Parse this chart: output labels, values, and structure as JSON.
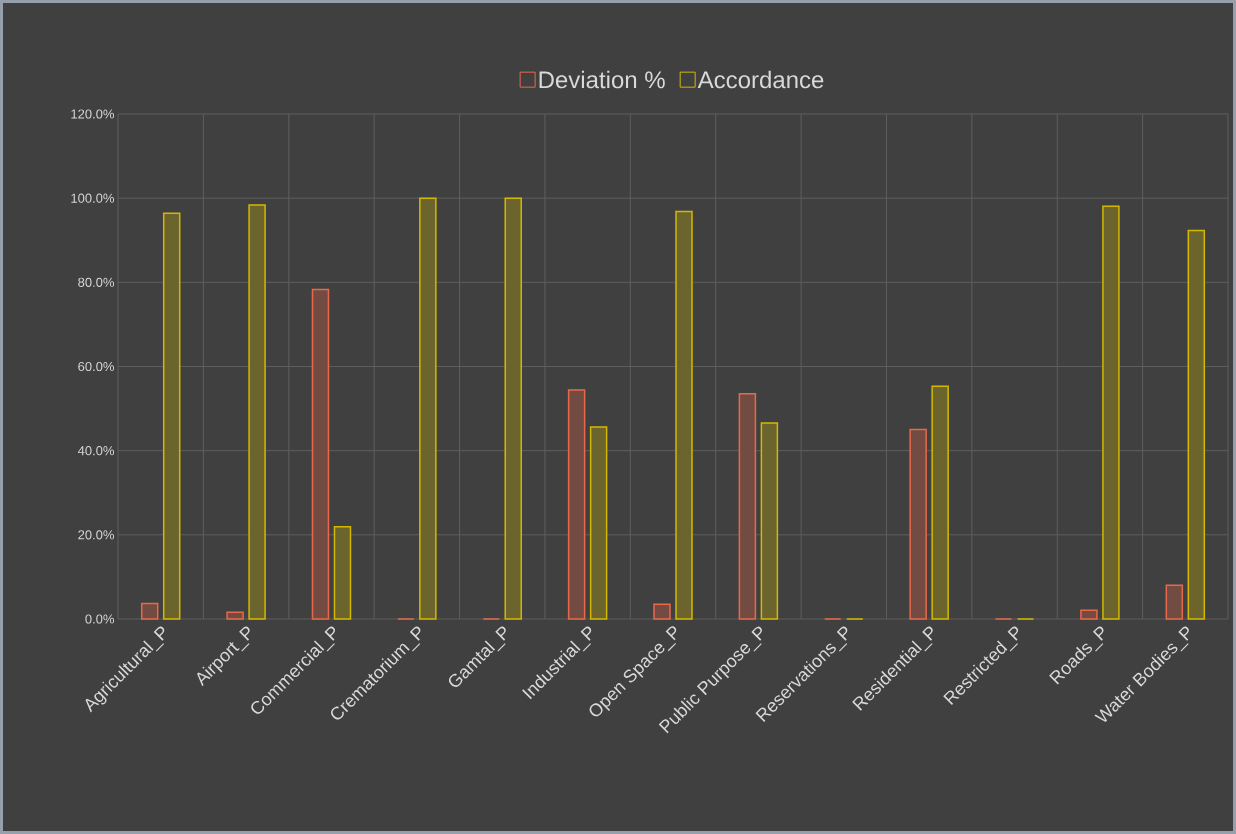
{
  "chart_data": {
    "type": "bar",
    "categories": [
      "Agricultural_P",
      "Airport_P",
      "Commercial_P",
      "Crematorium_P",
      "Gamtal_P",
      "Industrial_P",
      "Open Space_P",
      "Public Purpose_P",
      "Reservations_P",
      "Residential_P",
      "Restricted_P",
      "Roads_P",
      "Water Bodies_P"
    ],
    "series": [
      {
        "name": "Deviation %",
        "color": "#e8694a",
        "values": [
          3.7,
          1.6,
          78.3,
          0,
          0,
          54.4,
          3.5,
          53.5,
          0,
          45.0,
          0,
          2.1,
          8.0
        ]
      },
      {
        "name": "Accordance",
        "color": "#d4b800",
        "values": [
          96.4,
          98.4,
          21.9,
          100,
          100,
          45.6,
          96.8,
          46.6,
          0,
          55.3,
          0,
          98.1,
          92.3
        ]
      }
    ],
    "ylim": [
      0,
      120
    ],
    "yticks": [
      {
        "value": 0,
        "label": "0.0%"
      },
      {
        "value": 20,
        "label": "20.0%"
      },
      {
        "value": 40,
        "label": "40.0%"
      },
      {
        "value": 60,
        "label": "60.0%"
      },
      {
        "value": 80,
        "label": "80.0%"
      },
      {
        "value": 100,
        "label": "100.0%"
      },
      {
        "value": 120,
        "label": "120.0%"
      }
    ],
    "grid": true,
    "legend": "top"
  }
}
